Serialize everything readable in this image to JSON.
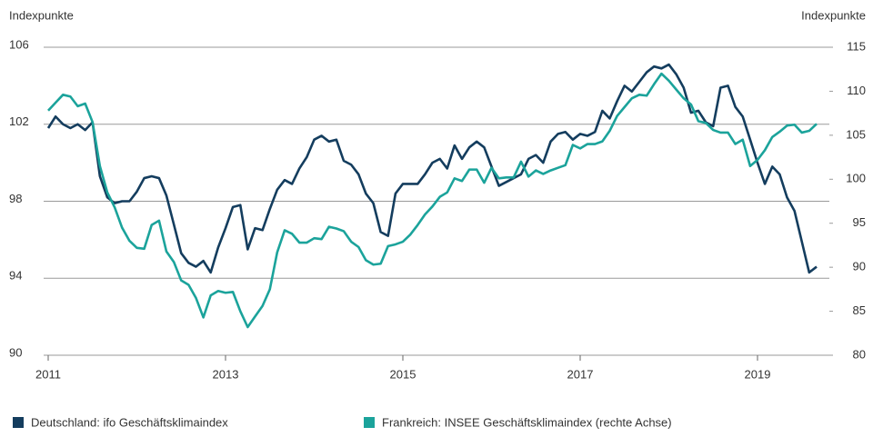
{
  "chart_data": {
    "type": "line",
    "y_label": "Indexpunkte",
    "y2_label": "Indexpunkte",
    "x": [
      2011,
      2011.083,
      2011.167,
      2011.25,
      2011.333,
      2011.417,
      2011.5,
      2011.583,
      2011.667,
      2011.75,
      2011.833,
      2011.917,
      2012,
      2012.083,
      2012.167,
      2012.25,
      2012.333,
      2012.417,
      2012.5,
      2012.583,
      2012.667,
      2012.75,
      2012.833,
      2012.917,
      2013,
      2013.083,
      2013.167,
      2013.25,
      2013.333,
      2013.417,
      2013.5,
      2013.583,
      2013.667,
      2013.75,
      2013.833,
      2013.917,
      2014,
      2014.083,
      2014.167,
      2014.25,
      2014.333,
      2014.417,
      2014.5,
      2014.583,
      2014.667,
      2014.75,
      2014.833,
      2014.917,
      2015,
      2015.083,
      2015.167,
      2015.25,
      2015.333,
      2015.417,
      2015.5,
      2015.583,
      2015.667,
      2015.75,
      2015.833,
      2015.917,
      2016,
      2016.083,
      2016.167,
      2016.25,
      2016.333,
      2016.417,
      2016.5,
      2016.583,
      2016.667,
      2016.75,
      2016.833,
      2016.917,
      2017,
      2017.083,
      2017.167,
      2017.25,
      2017.333,
      2017.417,
      2017.5,
      2017.583,
      2017.667,
      2017.75,
      2017.833,
      2017.917,
      2018,
      2018.083,
      2018.167,
      2018.25,
      2018.333,
      2018.417,
      2018.5,
      2018.583,
      2018.667,
      2018.75,
      2018.833,
      2018.917,
      2019,
      2019.083,
      2019.167,
      2019.25,
      2019.333,
      2019.417,
      2019.5,
      2019.583,
      2019.667
    ],
    "series": [
      {
        "name": "Deutschland: ifo Geschäftsklimaindex",
        "color": "#143d5e",
        "axis": "y",
        "values": [
          101.8,
          102.4,
          102.0,
          101.8,
          102.0,
          101.7,
          102.1,
          99.3,
          98.2,
          97.9,
          98.0,
          98.0,
          98.5,
          99.2,
          99.3,
          99.2,
          98.3,
          96.8,
          95.3,
          94.8,
          94.6,
          94.9,
          94.3,
          95.6,
          96.6,
          97.7,
          97.8,
          95.5,
          96.6,
          96.5,
          97.6,
          98.6,
          99.1,
          98.9,
          99.7,
          100.3,
          101.2,
          101.4,
          101.1,
          101.2,
          100.1,
          99.9,
          99.4,
          98.4,
          97.9,
          96.4,
          96.2,
          98.4,
          98.9,
          98.9,
          98.9,
          99.4,
          100.0,
          100.2,
          99.7,
          100.9,
          100.2,
          100.8,
          101.1,
          100.8,
          99.8,
          98.8,
          99.0,
          99.2,
          99.4,
          100.2,
          100.4,
          100.0,
          101.1,
          101.5,
          101.6,
          101.2,
          101.5,
          101.4,
          101.6,
          102.7,
          102.3,
          103.2,
          104.0,
          103.7,
          104.2,
          104.7,
          105.0,
          104.9,
          105.1,
          104.6,
          103.9,
          102.6,
          102.7,
          102.1,
          101.9,
          103.9,
          104.0,
          102.9,
          102.4,
          101.2,
          100.0,
          98.9,
          99.8,
          99.4,
          98.2,
          97.5,
          95.9,
          94.3,
          94.6
        ]
      },
      {
        "name": "Frankreich: INSEE Geschäftsklimaindex (rechte Achse)",
        "color": "#1ba39b",
        "axis": "y2",
        "values": [
          107.8,
          108.7,
          109.6,
          109.4,
          108.3,
          108.6,
          106.5,
          101.5,
          98.5,
          96.8,
          94.5,
          93.0,
          92.2,
          92.1,
          94.8,
          95.3,
          91.8,
          90.6,
          88.5,
          88.0,
          86.5,
          84.3,
          86.8,
          87.3,
          87.1,
          87.2,
          85.0,
          83.2,
          84.4,
          85.6,
          87.5,
          91.7,
          94.2,
          93.8,
          92.8,
          92.8,
          93.3,
          93.2,
          94.6,
          94.4,
          94.1,
          92.9,
          92.3,
          90.8,
          90.3,
          90.4,
          92.4,
          92.6,
          92.9,
          93.7,
          94.8,
          96.0,
          96.9,
          98.0,
          98.5,
          100.1,
          99.8,
          101.1,
          101.1,
          99.6,
          101.3,
          100.1,
          100.2,
          100.2,
          102.0,
          100.3,
          101.0,
          100.6,
          101.0,
          101.3,
          101.6,
          103.9,
          103.5,
          104.0,
          104.0,
          104.3,
          105.5,
          107.2,
          108.2,
          109.2,
          109.6,
          109.5,
          110.8,
          112.0,
          111.2,
          110.2,
          109.2,
          108.5,
          106.6,
          106.4,
          105.6,
          105.3,
          105.3,
          104.0,
          104.5,
          101.5,
          102.2,
          103.3,
          104.8,
          105.4,
          106.1,
          106.2,
          105.3,
          105.5,
          106.3
        ]
      }
    ],
    "xlim": [
      2011,
      2019.8
    ],
    "xticks": [
      2011,
      2013,
      2015,
      2017,
      2019
    ],
    "ylim": [
      90,
      106
    ],
    "yticks": [
      90,
      94,
      98,
      102,
      106
    ],
    "y2lim": [
      80,
      115
    ],
    "y2ticks": [
      80,
      85,
      90,
      95,
      100,
      105,
      110,
      115
    ],
    "grid": true
  }
}
